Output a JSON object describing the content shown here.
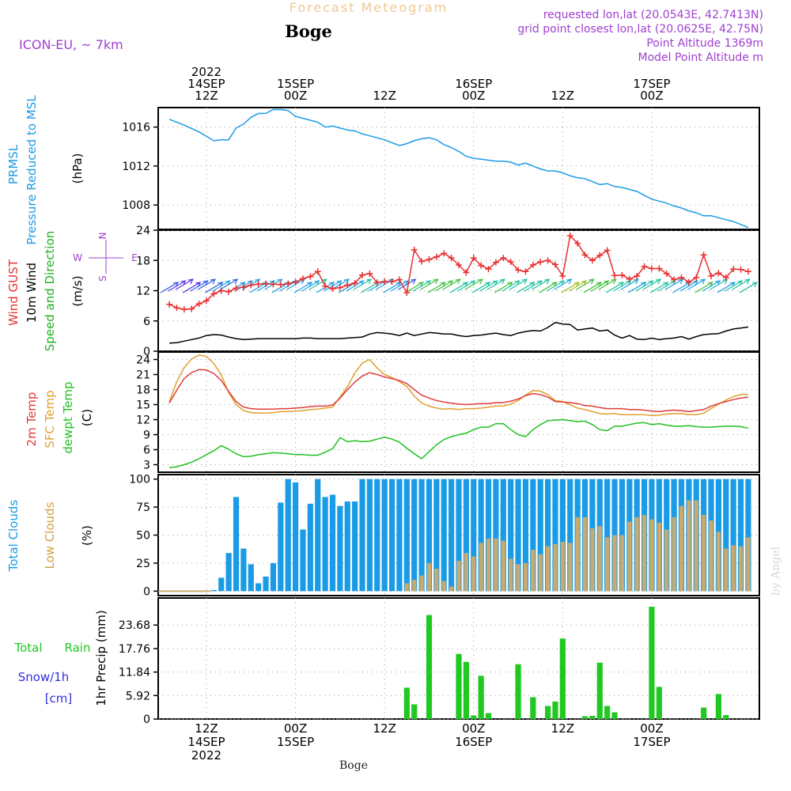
{
  "header": {
    "title": "Forecast Meteogram",
    "location": "Boge",
    "model": "ICON-EU, ~ 7km",
    "requested": "requested lon,lat (20.0543E, 42.7413N)",
    "grid_point": "grid point closest lon,lat (20.0625E, 42.75N)",
    "point_alt": "Point Altitude 1369m",
    "model_alt": "Model Point Altitude m",
    "footer": "Boge",
    "watermark": "by Angel"
  },
  "colors": {
    "pressure": "#1e9be6",
    "gust": "#e83030",
    "wind": "#000000",
    "temp2m": "#e03c3c",
    "sfc": "#e0a030",
    "dewpt": "#22c022",
    "total_clouds": "#1a9be6",
    "low_clouds": "#c8aa6e",
    "rain": "#22c822",
    "title": "#f0c890",
    "purple": "#a040d0",
    "snow": "#3030e0"
  },
  "time_axis": {
    "top_ticks": [
      {
        "h": 12,
        "lines": [
          "2022",
          "14SEP",
          "12Z"
        ]
      },
      {
        "h": 24,
        "lines": [
          "15SEP",
          "00Z"
        ]
      },
      {
        "h": 36,
        "lines": [
          "12Z"
        ]
      },
      {
        "h": 48,
        "lines": [
          "16SEP",
          "00Z"
        ]
      },
      {
        "h": 60,
        "lines": [
          "12Z"
        ]
      },
      {
        "h": 72,
        "lines": [
          "17SEP",
          "00Z"
        ]
      }
    ],
    "bottom_ticks": [
      {
        "h": 12,
        "lines": [
          "12Z",
          "14SEP",
          "2022"
        ]
      },
      {
        "h": 24,
        "lines": [
          "00Z",
          "15SEP"
        ]
      },
      {
        "h": 36,
        "lines": [
          "12Z"
        ]
      },
      {
        "h": 48,
        "lines": [
          "00Z",
          "16SEP"
        ]
      },
      {
        "h": 60,
        "lines": [
          "12Z"
        ]
      },
      {
        "h": 72,
        "lines": [
          "00Z",
          "17SEP"
        ]
      }
    ]
  },
  "labels": {
    "pressure": [
      "PRMSL",
      "Pressure Reduced to MSL",
      "(hPa)"
    ],
    "wind": [
      "Wind GUST",
      "10m Wind",
      "Speed and Direction",
      "(m/s)"
    ],
    "compass": [
      "N",
      "E",
      "S",
      "W"
    ],
    "temp": [
      "2m Temp",
      "SFC Temp",
      "dewpt Temp",
      "(C)"
    ],
    "clouds": [
      "Total Clouds",
      "Low Clouds",
      "(%)"
    ],
    "precip": [
      "Total",
      "Rain",
      "Snow/1h",
      "[cm]",
      "1hr Precip (mm)"
    ]
  },
  "chart_data": [
    {
      "type": "line",
      "title": "PRMSL Pressure Reduced to MSL",
      "ylabel": "(hPa)",
      "ylim": [
        1005.5,
        1018.0
      ],
      "yticks": [
        1008,
        1012,
        1016
      ],
      "x": [
        7,
        9,
        11,
        13,
        14,
        15,
        16,
        17,
        18,
        19,
        20,
        21,
        22,
        23,
        24,
        25,
        26,
        27,
        28,
        29,
        30,
        31,
        32,
        33,
        34,
        35,
        36,
        37,
        38,
        39,
        40,
        41,
        42,
        43,
        44,
        45,
        46,
        47,
        48,
        49,
        50,
        51,
        52,
        53,
        54,
        55,
        56,
        57,
        58,
        59,
        60,
        61,
        62,
        63,
        64,
        65,
        66,
        67,
        68,
        69,
        70,
        71,
        72,
        73,
        74,
        75,
        76,
        77,
        78,
        79,
        80,
        81,
        82,
        83,
        84,
        85
      ],
      "series": [
        {
          "name": "PRMSL",
          "values": [
            1016.8,
            1016.2,
            1015.5,
            1014.6,
            1014.7,
            1014.7,
            1015.9,
            1016.3,
            1017.0,
            1017.4,
            1017.4,
            1017.8,
            1017.8,
            1017.7,
            1017.1,
            1016.9,
            1016.7,
            1016.5,
            1016.0,
            1016.1,
            1015.9,
            1015.7,
            1015.6,
            1015.3,
            1015.1,
            1014.9,
            1014.7,
            1014.4,
            1014.1,
            1014.3,
            1014.6,
            1014.8,
            1014.9,
            1014.7,
            1014.2,
            1013.9,
            1013.5,
            1013.0,
            1012.8,
            1012.7,
            1012.6,
            1012.5,
            1012.5,
            1012.4,
            1012.1,
            1012.3,
            1012.0,
            1011.7,
            1011.5,
            1011.5,
            1011.3,
            1011.0,
            1010.8,
            1010.7,
            1010.4,
            1010.1,
            1010.2,
            1009.9,
            1009.8,
            1009.6,
            1009.4,
            1009.0,
            1008.6,
            1008.4,
            1008.2,
            1007.9,
            1007.7,
            1007.4,
            1007.2,
            1006.9,
            1006.9,
            1006.7,
            1006.5,
            1006.3,
            1006.0,
            1005.7
          ]
        }
      ]
    },
    {
      "type": "line",
      "title": "Wind GUST / 10m Wind Speed and Direction",
      "ylabel": "(m/s)",
      "ylim": [
        0,
        24
      ],
      "yticks": [
        0,
        6,
        12,
        18,
        24
      ],
      "x": [
        7,
        8,
        9,
        10,
        11,
        12,
        13,
        14,
        15,
        16,
        17,
        18,
        19,
        20,
        21,
        22,
        23,
        24,
        25,
        26,
        27,
        28,
        29,
        30,
        31,
        32,
        33,
        34,
        35,
        36,
        37,
        38,
        39,
        40,
        41,
        42,
        43,
        44,
        45,
        46,
        47,
        48,
        49,
        50,
        51,
        52,
        53,
        54,
        55,
        56,
        57,
        58,
        59,
        60,
        61,
        62,
        63,
        64,
        65,
        66,
        67,
        68,
        69,
        70,
        71,
        72,
        73,
        74,
        75,
        76,
        77,
        78,
        79,
        80,
        81,
        82,
        83,
        84,
        85
      ],
      "series": [
        {
          "name": "Wind GUST",
          "values": [
            9.3,
            8.6,
            8.3,
            8.4,
            9.4,
            10.0,
            11.4,
            12.0,
            11.8,
            12.5,
            12.7,
            13.1,
            13.3,
            13.4,
            13.3,
            13.2,
            13.4,
            13.7,
            14.4,
            14.8,
            15.8,
            12.9,
            12.4,
            12.6,
            13.1,
            13.5,
            15.1,
            15.4,
            13.6,
            13.8,
            13.8,
            14.2,
            11.6,
            20.1,
            17.8,
            18.2,
            18.7,
            19.4,
            18.5,
            17.1,
            15.6,
            18.5,
            17.0,
            16.3,
            17.6,
            18.5,
            17.7,
            16.1,
            15.8,
            17.1,
            17.7,
            18.0,
            17.2,
            14.9,
            22.9,
            21.4,
            19.1,
            18.0,
            19.0,
            20.0,
            15.0,
            15.1,
            14.3,
            14.9,
            16.8,
            16.4,
            16.4,
            15.4,
            14.2,
            14.6,
            13.7,
            14.6,
            19.1,
            14.9,
            15.5,
            14.6,
            16.3,
            16.2,
            15.8
          ]
        },
        {
          "name": "10m Wind",
          "values": [
            1.6,
            1.7,
            2.0,
            2.3,
            2.6,
            3.1,
            3.3,
            3.2,
            2.8,
            2.5,
            2.3,
            2.4,
            2.5,
            2.5,
            2.5,
            2.5,
            2.5,
            2.5,
            2.6,
            2.6,
            2.5,
            2.5,
            2.5,
            2.5,
            2.6,
            2.7,
            2.8,
            3.4,
            3.7,
            3.6,
            3.4,
            3.1,
            3.6,
            3.1,
            3.4,
            3.7,
            3.6,
            3.4,
            3.4,
            3.1,
            2.9,
            3.1,
            3.2,
            3.4,
            3.6,
            3.3,
            3.1,
            3.6,
            3.9,
            4.1,
            4.0,
            4.7,
            5.7,
            5.4,
            5.3,
            4.2,
            4.4,
            4.6,
            4.0,
            4.2,
            3.2,
            2.6,
            3.1,
            2.4,
            2.3,
            2.6,
            2.3,
            2.5,
            2.6,
            2.9,
            2.4,
            2.9,
            3.3,
            3.4,
            3.5,
            4.0,
            4.4,
            4.6,
            4.8
          ]
        }
      ]
    },
    {
      "type": "line",
      "title": "2m Temp / SFC Temp / dewpt Temp",
      "ylabel": "(C)",
      "ylim": [
        1.5,
        25.5
      ],
      "yticks": [
        3,
        6,
        9,
        12,
        15,
        18,
        21,
        24
      ],
      "x": [
        7,
        8,
        9,
        10,
        11,
        12,
        13,
        14,
        15,
        16,
        17,
        18,
        19,
        20,
        21,
        22,
        23,
        24,
        25,
        26,
        27,
        28,
        29,
        30,
        31,
        32,
        33,
        34,
        35,
        36,
        37,
        38,
        39,
        40,
        41,
        42,
        43,
        44,
        45,
        46,
        47,
        48,
        49,
        50,
        51,
        52,
        53,
        54,
        55,
        56,
        57,
        58,
        59,
        60,
        61,
        62,
        63,
        64,
        65,
        66,
        67,
        68,
        69,
        70,
        71,
        72,
        73,
        74,
        75,
        76,
        77,
        78,
        79,
        80,
        81,
        82,
        83,
        84,
        85
      ],
      "series": [
        {
          "name": "2m Temp",
          "values": [
            15.3,
            17.9,
            20.2,
            21.4,
            22.0,
            21.9,
            21.2,
            19.8,
            17.6,
            15.6,
            14.5,
            14.2,
            14.1,
            14.1,
            14.1,
            14.2,
            14.2,
            14.3,
            14.4,
            14.6,
            14.7,
            14.7,
            14.9,
            16.3,
            18.0,
            19.5,
            20.7,
            21.4,
            21.0,
            20.5,
            20.2,
            19.8,
            19.2,
            18.0,
            16.9,
            16.3,
            15.8,
            15.5,
            15.3,
            15.1,
            15.0,
            15.1,
            15.2,
            15.2,
            15.4,
            15.4,
            15.7,
            16.1,
            16.8,
            17.2,
            17.0,
            16.5,
            15.6,
            15.5,
            15.4,
            15.2,
            14.8,
            14.7,
            14.4,
            14.2,
            14.2,
            14.2,
            14.0,
            14.0,
            13.9,
            13.7,
            13.6,
            13.8,
            13.9,
            13.8,
            13.6,
            13.8,
            14.0,
            14.7,
            15.2,
            15.6,
            16.0,
            16.3,
            16.5
          ]
        },
        {
          "name": "SFC Temp",
          "values": [
            15.6,
            19.6,
            22.4,
            24.1,
            24.9,
            24.6,
            23.2,
            20.9,
            17.4,
            15.0,
            13.8,
            13.4,
            13.3,
            13.3,
            13.4,
            13.6,
            13.6,
            13.7,
            13.8,
            14.0,
            14.1,
            14.3,
            14.5,
            16.5,
            18.6,
            21.3,
            23.3,
            24.0,
            22.3,
            21.0,
            20.4,
            19.6,
            18.6,
            16.7,
            15.3,
            14.7,
            14.3,
            14.1,
            14.2,
            14.0,
            14.2,
            14.2,
            14.3,
            14.5,
            14.7,
            14.7,
            15.1,
            15.8,
            16.9,
            17.8,
            17.7,
            17.0,
            15.8,
            15.6,
            15.0,
            14.3,
            14.0,
            13.6,
            13.2,
            13.1,
            13.2,
            13.0,
            13.0,
            13.0,
            13.0,
            12.8,
            12.9,
            13.1,
            13.2,
            13.2,
            13.0,
            13.0,
            13.3,
            14.2,
            15.1,
            15.9,
            16.6,
            17.0,
            17.0
          ]
        },
        {
          "name": "dewpt Temp",
          "values": [
            2.4,
            2.6,
            3.0,
            3.5,
            4.2,
            5.0,
            5.8,
            6.8,
            6.1,
            5.2,
            4.6,
            4.7,
            5.0,
            5.2,
            5.4,
            5.3,
            5.2,
            5.0,
            5.0,
            4.9,
            4.9,
            5.5,
            6.2,
            8.4,
            7.6,
            7.8,
            7.6,
            7.7,
            8.1,
            8.5,
            8.1,
            7.5,
            6.3,
            5.2,
            4.2,
            5.6,
            7.0,
            8.0,
            8.6,
            9.0,
            9.3,
            10.0,
            10.5,
            10.5,
            11.2,
            11.2,
            10.0,
            9.0,
            8.6,
            10.0,
            11.0,
            11.8,
            11.9,
            12.0,
            11.8,
            11.6,
            11.7,
            11.0,
            10.0,
            9.8,
            10.7,
            10.7,
            11.0,
            11.3,
            11.4,
            11.0,
            11.2,
            10.9,
            10.7,
            10.7,
            10.8,
            10.6,
            10.5,
            10.5,
            10.6,
            10.7,
            10.7,
            10.6,
            10.3
          ]
        }
      ]
    },
    {
      "type": "bar",
      "title": "Total Clouds / Low Clouds",
      "ylabel": "(%)",
      "ylim": [
        -4,
        104
      ],
      "yticks": [
        0,
        25,
        50,
        75,
        100
      ],
      "x": [
        13,
        14,
        15,
        16,
        17,
        18,
        19,
        20,
        21,
        22,
        23,
        24,
        25,
        26,
        27,
        28,
        29,
        30,
        31,
        32,
        33,
        34,
        35,
        36,
        37,
        38,
        39,
        40,
        41,
        42,
        43,
        44,
        45,
        46,
        47,
        48,
        49,
        50,
        51,
        52,
        53,
        54,
        55,
        56,
        57,
        58,
        59,
        60,
        61,
        62,
        63,
        64,
        65,
        66,
        67,
        68,
        69,
        70,
        71,
        72,
        73,
        74,
        75,
        76,
        77,
        78,
        79,
        80,
        81,
        82,
        83,
        84,
        85
      ],
      "series": [
        {
          "name": "Total Clouds",
          "values": [
            1,
            12,
            34,
            84,
            38,
            24,
            7,
            13,
            25,
            79,
            100,
            97,
            55,
            78,
            100,
            84,
            86,
            76,
            80,
            80,
            100,
            100,
            100,
            100,
            100,
            100,
            100,
            100,
            100,
            100,
            100,
            100,
            100,
            100,
            100,
            100,
            100,
            100,
            100,
            100,
            100,
            100,
            100,
            100,
            100,
            100,
            100,
            100,
            100,
            100,
            100,
            100,
            100,
            100,
            100,
            100,
            100,
            100,
            100,
            100,
            100,
            100,
            100,
            100,
            100,
            100,
            100,
            100,
            100,
            100,
            100,
            100,
            100
          ]
        },
        {
          "name": "Low Clouds",
          "values": [
            0,
            0,
            0,
            0,
            0,
            0,
            0,
            0,
            0,
            0,
            0,
            0,
            0,
            0,
            0,
            0,
            0,
            0,
            0,
            0,
            0,
            0,
            0,
            0,
            0,
            0,
            7,
            10,
            14,
            25,
            20,
            9,
            4,
            27,
            34,
            31,
            43,
            47,
            47,
            45,
            29,
            24,
            25,
            37,
            33,
            40,
            42,
            44,
            43,
            66,
            66,
            56,
            58,
            48,
            50,
            50,
            62,
            66,
            68,
            64,
            61,
            55,
            66,
            76,
            81,
            81,
            68,
            63,
            53,
            38,
            41,
            40,
            48
          ]
        }
      ]
    },
    {
      "type": "bar",
      "title": "Total Rain / Snow/1h",
      "ylabel": "1hr Precip (mm)",
      "ylim": [
        0,
        30.5
      ],
      "yticks": [
        0,
        5.92,
        11.84,
        17.76,
        23.68
      ],
      "x": [
        39,
        40,
        42,
        46,
        47,
        48,
        49,
        50,
        54,
        56,
        58,
        59,
        60,
        63,
        64,
        65,
        66,
        67,
        72,
        73,
        79,
        81,
        82
      ],
      "series": [
        {
          "name": "Total Rain",
          "values": [
            7.9,
            3.7,
            26.2,
            16.4,
            14.4,
            0.9,
            10.9,
            1.5,
            13.8,
            5.5,
            3.3,
            4.4,
            20.3,
            0.7,
            0.8,
            14.2,
            3.3,
            1.7,
            28.3,
            8.1,
            2.9,
            6.3,
            1.0
          ]
        }
      ]
    }
  ]
}
